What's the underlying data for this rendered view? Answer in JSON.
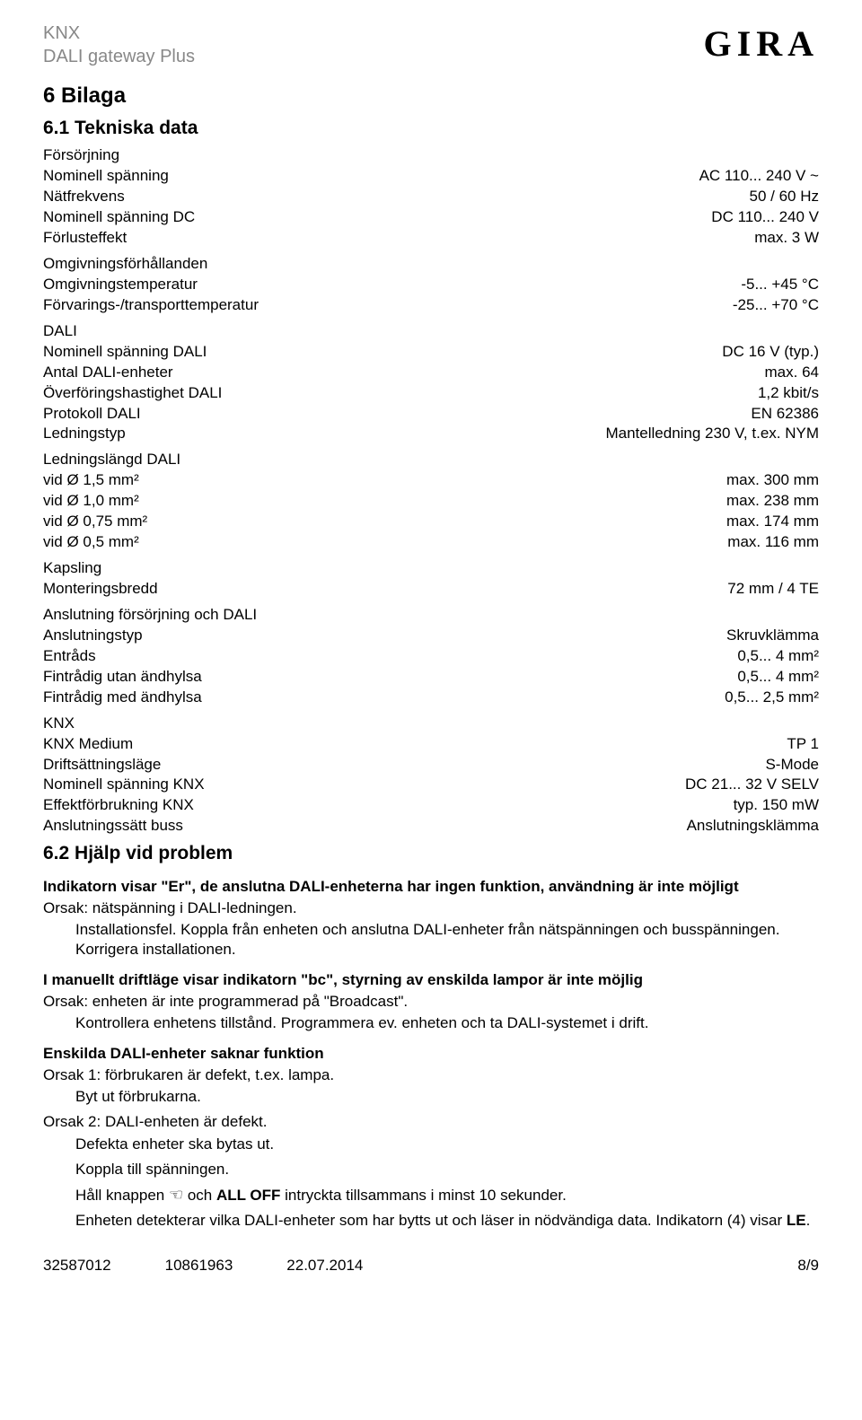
{
  "header": {
    "line1": "KNX",
    "line2": "DALI gateway Plus",
    "logo": "GIRA"
  },
  "h2_bilaga": "6 Bilaga",
  "h3_tekniska": "6.1 Tekniska data",
  "groups": [
    {
      "title": "Försörjning",
      "rows": [
        {
          "label": "Nominell spänning",
          "value": "AC 110... 240 V ~"
        },
        {
          "label": "Nätfrekvens",
          "value": "50 / 60 Hz"
        },
        {
          "label": "Nominell spänning DC",
          "value": "DC 110... 240 V"
        },
        {
          "label": "Förlusteffekt",
          "value": "max. 3 W"
        }
      ]
    },
    {
      "title": "Omgivningsförhållanden",
      "rows": [
        {
          "label": "Omgivningstemperatur",
          "value": "-5... +45 °C"
        },
        {
          "label": "Förvarings-/transporttemperatur",
          "value": "-25... +70 °C"
        }
      ]
    },
    {
      "title": "DALI",
      "rows": [
        {
          "label": "Nominell spänning DALI",
          "value": "DC 16 V (typ.)"
        },
        {
          "label": "Antal DALI-enheter",
          "value": "max. 64"
        },
        {
          "label": "Överföringshastighet DALI",
          "value": "1,2 kbit/s"
        },
        {
          "label": "Protokoll DALI",
          "value": "EN 62386"
        },
        {
          "label": "Ledningstyp",
          "value": "Mantelledning 230 V, t.ex. NYM"
        }
      ]
    },
    {
      "title": "Ledningslängd DALI",
      "rows": [
        {
          "label": "vid Ø 1,5 mm²",
          "value": "max. 300 mm"
        },
        {
          "label": "vid Ø 1,0 mm²",
          "value": "max. 238 mm"
        },
        {
          "label": "vid Ø 0,75 mm²",
          "value": "max. 174 mm"
        },
        {
          "label": "vid Ø 0,5 mm²",
          "value": "max. 116 mm"
        }
      ]
    },
    {
      "title": "Kapsling",
      "rows": [
        {
          "label": "Monteringsbredd",
          "value": "72 mm / 4 TE"
        }
      ]
    },
    {
      "title": "Anslutning försörjning och DALI",
      "rows": [
        {
          "label": "Anslutningstyp",
          "value": "Skruvklämma"
        },
        {
          "label": "Entråds",
          "value": "0,5... 4 mm²"
        },
        {
          "label": "Fintrådig utan ändhylsa",
          "value": "0,5... 4 mm²"
        },
        {
          "label": "Fintrådig med ändhylsa",
          "value": "0,5... 2,5 mm²"
        }
      ]
    },
    {
      "title": "KNX",
      "rows": [
        {
          "label": "KNX Medium",
          "value": "TP 1"
        },
        {
          "label": "Driftsättningsläge",
          "value": "S-Mode"
        },
        {
          "label": "Nominell spänning KNX",
          "value": "DC 21... 32 V SELV"
        },
        {
          "label": "Effektförbrukning KNX",
          "value": "typ. 150 mW"
        },
        {
          "label": "Anslutningssätt buss",
          "value": "Anslutningsklämma"
        }
      ]
    }
  ],
  "h3_hjalp": "6.2 Hjälp vid problem",
  "prob1": {
    "heading": "Indikatorn visar \"Er\", de anslutna DALI-enheterna har ingen funktion, användning är inte möjligt",
    "line1": "Orsak: nätspänning i DALI-ledningen.",
    "indent": "Installationsfel. Koppla från enheten och anslutna DALI-enheter från nätspänningen och busspänningen. Korrigera installationen."
  },
  "prob2": {
    "heading": "I manuellt driftläge visar indikatorn \"bc\", styrning av enskilda lampor är inte möjlig",
    "line1": "Orsak: enheten är inte programmerad på \"Broadcast\".",
    "indent": "Kontrollera enhetens tillstånd. Programmera ev. enheten och ta DALI-systemet i drift."
  },
  "prob3": {
    "heading": "Enskilda DALI-enheter saknar funktion",
    "lines": [
      {
        "text": "Orsak 1: förbrukaren är defekt, t.ex. lampa.",
        "indent": false
      },
      {
        "text": "Byt ut förbrukarna.",
        "indent": true
      },
      {
        "text": "Orsak 2: DALI-enheten är defekt.",
        "indent": false
      },
      {
        "text": "Defekta enheter ska bytas ut.",
        "indent": true
      },
      {
        "text": "Koppla till spänningen.",
        "indent": true
      }
    ],
    "hand_pre": "Håll knappen ",
    "hand_mid": " och ",
    "hand_bold": "ALL OFF",
    "hand_post": " intryckta tillsammans i minst 10 sekunder.",
    "last": "Enheten detekterar vilka DALI-enheter som har bytts ut och läser in nödvändiga data. Indikatorn (4) visar ",
    "last_bold": "LE",
    "last_post": "."
  },
  "footer": {
    "c1": "32587012",
    "c2": "10861963",
    "c3": "22.07.2014",
    "page": "8/9"
  }
}
